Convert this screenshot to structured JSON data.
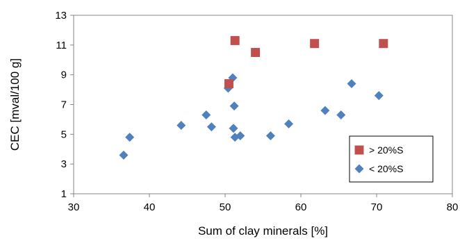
{
  "chart_data": {
    "type": "scatter",
    "title": "",
    "xlabel": "Sum of clay minerals [%]",
    "ylabel": "CEC [mval/100 g]",
    "xlim": [
      30,
      80
    ],
    "ylim": [
      1,
      13
    ],
    "x_ticks": [
      "30",
      "40",
      "50",
      "60",
      "70",
      "80"
    ],
    "y_ticks": [
      "1",
      "3",
      "5",
      "7",
      "9",
      "11",
      "13"
    ],
    "grid": false,
    "legend_position": "bottom-right",
    "series": [
      {
        "name": "> 20%S",
        "marker": "square",
        "color": "#C0504D",
        "points": [
          {
            "x": 51.3,
            "y": 11.3
          },
          {
            "x": 54.0,
            "y": 10.5
          },
          {
            "x": 61.8,
            "y": 11.1
          },
          {
            "x": 70.9,
            "y": 11.1
          },
          {
            "x": 50.5,
            "y": 8.4
          }
        ]
      },
      {
        "name": "< 20%S",
        "marker": "diamond",
        "color": "#4F81BD",
        "points": [
          {
            "x": 36.6,
            "y": 3.6
          },
          {
            "x": 37.4,
            "y": 4.8
          },
          {
            "x": 44.2,
            "y": 5.6
          },
          {
            "x": 47.5,
            "y": 6.3
          },
          {
            "x": 48.2,
            "y": 5.5
          },
          {
            "x": 50.4,
            "y": 8.1
          },
          {
            "x": 51.0,
            "y": 8.8
          },
          {
            "x": 51.2,
            "y": 6.9
          },
          {
            "x": 51.1,
            "y": 5.4
          },
          {
            "x": 51.3,
            "y": 4.8
          },
          {
            "x": 52.0,
            "y": 4.9
          },
          {
            "x": 56.0,
            "y": 4.9
          },
          {
            "x": 58.4,
            "y": 5.7
          },
          {
            "x": 63.2,
            "y": 6.6
          },
          {
            "x": 65.3,
            "y": 6.3
          },
          {
            "x": 66.7,
            "y": 8.4
          },
          {
            "x": 70.3,
            "y": 7.6
          }
        ]
      }
    ]
  }
}
